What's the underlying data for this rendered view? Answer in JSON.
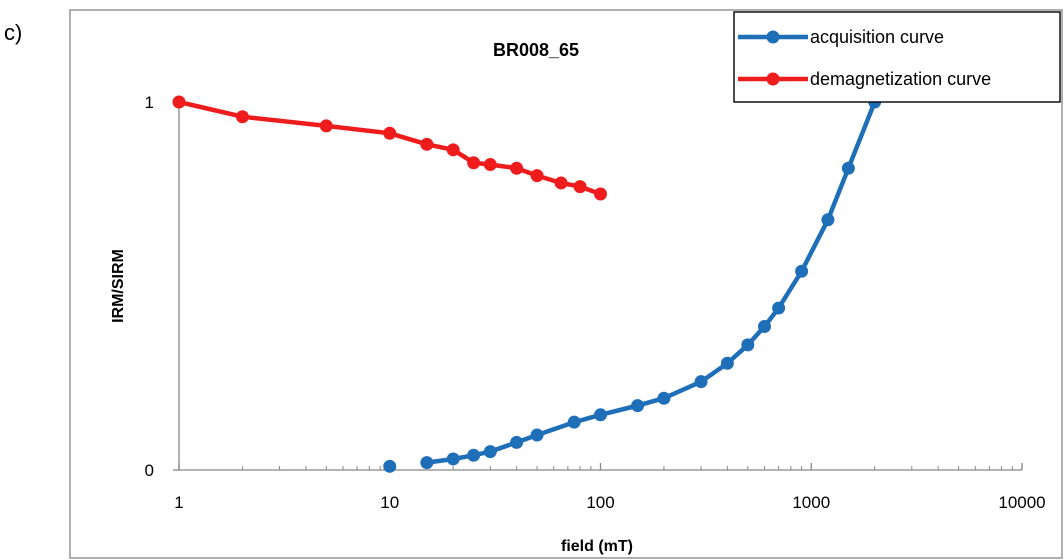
{
  "panel_label": "c)",
  "chart_data": {
    "type": "line",
    "title": "BR008_65",
    "xlabel": "field (mT)",
    "ylabel": "IRM/SIRM",
    "x_scale": "log",
    "xlim": [
      1,
      10000
    ],
    "ylim": [
      0,
      1
    ],
    "x_ticks": [
      1,
      10,
      100,
      1000,
      10000
    ],
    "x_tick_labels": [
      "1",
      "10",
      "100",
      "1000",
      "10000"
    ],
    "y_ticks": [
      0,
      1
    ],
    "y_tick_labels": [
      "0",
      "1"
    ],
    "grid": false,
    "legend_position": "top-right",
    "series": [
      {
        "name": "acquisition curve",
        "color": "#1f6fb8",
        "x": [
          10,
          15,
          20,
          25,
          30,
          40,
          50,
          75,
          100,
          150,
          200,
          300,
          400,
          500,
          600,
          700,
          900,
          1200,
          1500,
          2000
        ],
        "y": [
          0.01,
          0.02,
          0.03,
          0.04,
          0.05,
          0.075,
          0.095,
          0.13,
          0.15,
          0.175,
          0.195,
          0.24,
          0.29,
          0.34,
          0.39,
          0.44,
          0.54,
          0.68,
          0.82,
          1.0
        ],
        "connected_from_index": 1
      },
      {
        "name": "demagnetization curve",
        "color": "#ee1c1c",
        "x": [
          1,
          2,
          5,
          10,
          15,
          20,
          25,
          30,
          40,
          50,
          65,
          80,
          100
        ],
        "y": [
          1.0,
          0.96,
          0.935,
          0.915,
          0.885,
          0.87,
          0.835,
          0.83,
          0.82,
          0.8,
          0.78,
          0.77,
          0.75
        ]
      }
    ]
  }
}
